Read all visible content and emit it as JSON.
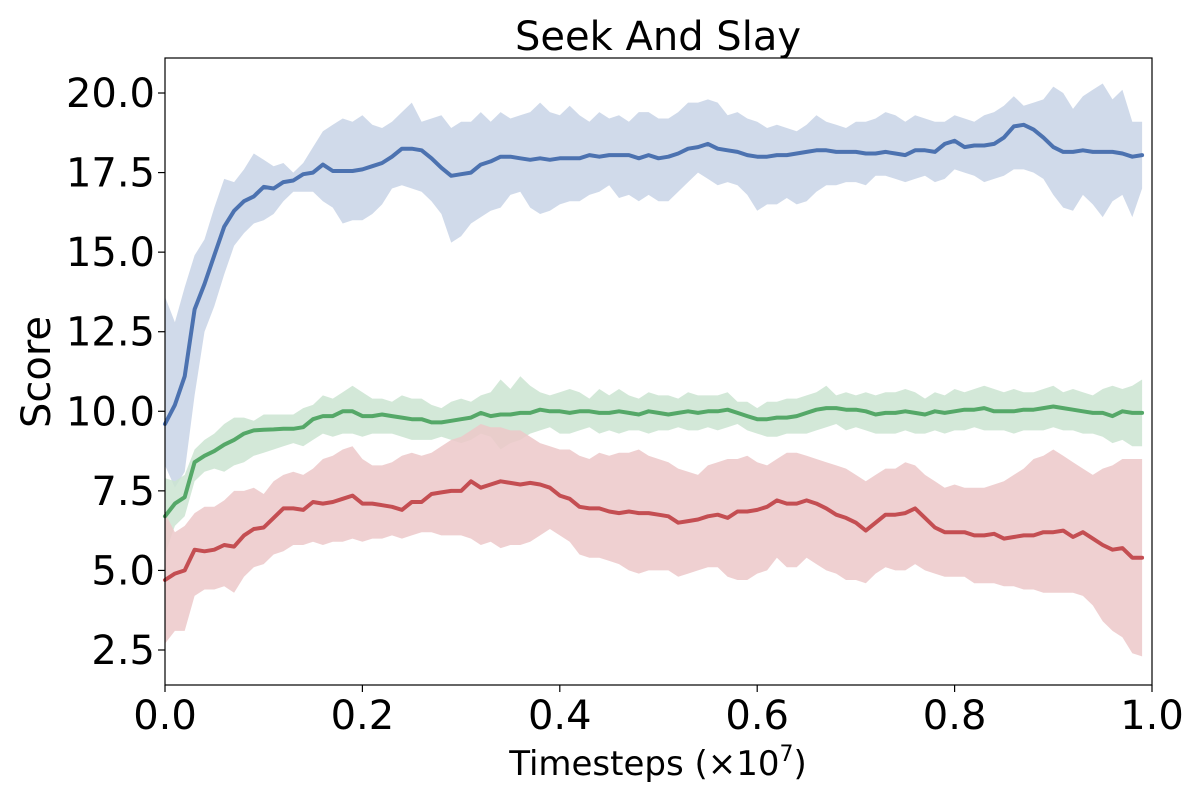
{
  "chart_data": {
    "type": "line",
    "title": "Seek And Slay",
    "xlabel": "Timesteps (×10",
    "xlabel_exponent": "7",
    "xlabel_suffix": ")",
    "ylabel": "Score",
    "xlim": [
      0.0,
      1.0
    ],
    "ylim": [
      1.4,
      21.1
    ],
    "xticks": [
      "0.0",
      "0.2",
      "0.4",
      "0.6",
      "0.8",
      "1.0"
    ],
    "yticks": [
      "2.5",
      "5.0",
      "7.5",
      "10.0",
      "12.5",
      "15.0",
      "17.5",
      "20.0"
    ],
    "grid": false,
    "series": [
      {
        "color": "#4c72b0",
        "fill_color": "#c8d3e6",
        "x": [
          0.0,
          0.01,
          0.02,
          0.03,
          0.04,
          0.05,
          0.06,
          0.07,
          0.08,
          0.09,
          0.1,
          0.11,
          0.12,
          0.13,
          0.14,
          0.15,
          0.16,
          0.17,
          0.18,
          0.19,
          0.2,
          0.21,
          0.22,
          0.23,
          0.24,
          0.25,
          0.26,
          0.27,
          0.28,
          0.29,
          0.3,
          0.31,
          0.32,
          0.33,
          0.34,
          0.35,
          0.36,
          0.37,
          0.38,
          0.39,
          0.4,
          0.41,
          0.42,
          0.43,
          0.44,
          0.45,
          0.46,
          0.47,
          0.48,
          0.49,
          0.5,
          0.51,
          0.52,
          0.53,
          0.54,
          0.55,
          0.56,
          0.57,
          0.58,
          0.59,
          0.6,
          0.61,
          0.62,
          0.63,
          0.64,
          0.65,
          0.66,
          0.67,
          0.68,
          0.69,
          0.7,
          0.71,
          0.72,
          0.73,
          0.74,
          0.75,
          0.76,
          0.77,
          0.78,
          0.79,
          0.8,
          0.81,
          0.82,
          0.83,
          0.84,
          0.85,
          0.86,
          0.87,
          0.88,
          0.89,
          0.9,
          0.91,
          0.92,
          0.93,
          0.94,
          0.95,
          0.96,
          0.97,
          0.98,
          0.99
        ],
        "mean": [
          9.6,
          10.2,
          11.1,
          13.2,
          14.0,
          14.9,
          15.8,
          16.3,
          16.6,
          16.75,
          17.05,
          17.0,
          17.2,
          17.25,
          17.45,
          17.5,
          17.75,
          17.55,
          17.55,
          17.55,
          17.6,
          17.7,
          17.8,
          18.0,
          18.25,
          18.25,
          18.2,
          17.95,
          17.65,
          17.4,
          17.45,
          17.5,
          17.75,
          17.85,
          18.0,
          18.0,
          17.95,
          17.9,
          17.95,
          17.9,
          17.95,
          17.95,
          17.95,
          18.05,
          18.0,
          18.05,
          18.05,
          18.05,
          17.95,
          18.05,
          17.95,
          18.0,
          18.1,
          18.25,
          18.3,
          18.4,
          18.25,
          18.2,
          18.15,
          18.05,
          18.0,
          18.0,
          18.05,
          18.05,
          18.1,
          18.15,
          18.2,
          18.2,
          18.15,
          18.15,
          18.15,
          18.1,
          18.1,
          18.15,
          18.1,
          18.05,
          18.2,
          18.2,
          18.15,
          18.4,
          18.5,
          18.3,
          18.35,
          18.35,
          18.4,
          18.6,
          18.95,
          19.0,
          18.85,
          18.6,
          18.3,
          18.15,
          18.15,
          18.2,
          18.15,
          18.15,
          18.15,
          18.1,
          18.0,
          18.05
        ],
        "upper": [
          13.6,
          12.8,
          13.9,
          14.9,
          15.4,
          16.4,
          17.3,
          17.2,
          17.6,
          18.1,
          17.9,
          17.7,
          17.8,
          17.5,
          17.8,
          18.3,
          18.8,
          19.0,
          19.2,
          19.1,
          19.3,
          19.0,
          18.9,
          19.1,
          19.4,
          19.7,
          19.1,
          19.2,
          19.3,
          18.9,
          19.1,
          19.1,
          19.4,
          19.1,
          19.4,
          19.2,
          19.3,
          19.4,
          19.7,
          19.4,
          19.3,
          19.6,
          19.3,
          19.1,
          19.4,
          19.2,
          19.3,
          19.1,
          19.4,
          19.4,
          19.2,
          19.2,
          19.4,
          19.7,
          19.7,
          19.8,
          19.7,
          19.3,
          19.4,
          19.2,
          19.1,
          18.9,
          19.0,
          18.9,
          18.8,
          19.0,
          19.3,
          19.1,
          19.0,
          18.9,
          19.1,
          19.1,
          19.2,
          19.4,
          19.3,
          19.1,
          19.3,
          19.2,
          19.1,
          19.1,
          19.3,
          19.2,
          19.1,
          19.3,
          19.4,
          19.6,
          19.9,
          19.6,
          19.7,
          19.8,
          20.2,
          20.0,
          19.5,
          19.9,
          20.1,
          20.3,
          19.8,
          20.1,
          19.1,
          19.1
        ],
        "lower": [
          8.3,
          7.6,
          8.1,
          10.5,
          12.5,
          13.3,
          14.3,
          15.2,
          15.6,
          15.9,
          16.0,
          16.2,
          16.6,
          16.9,
          16.9,
          16.9,
          16.6,
          16.4,
          15.9,
          16.0,
          16.0,
          16.2,
          16.5,
          17.0,
          17.1,
          17.0,
          16.9,
          16.6,
          16.2,
          15.3,
          15.5,
          15.9,
          16.1,
          16.3,
          16.4,
          16.8,
          16.9,
          16.4,
          16.2,
          16.3,
          16.5,
          16.6,
          16.6,
          16.8,
          16.9,
          17.1,
          16.7,
          16.8,
          16.6,
          16.8,
          16.6,
          16.6,
          16.9,
          17.2,
          17.5,
          17.3,
          17.1,
          17.2,
          17.1,
          16.8,
          16.3,
          16.5,
          16.5,
          16.7,
          16.5,
          16.6,
          16.9,
          17.1,
          17.1,
          17.2,
          17.2,
          17.1,
          17.4,
          17.4,
          17.3,
          17.2,
          17.3,
          17.4,
          17.2,
          17.3,
          17.6,
          17.5,
          17.4,
          17.2,
          17.3,
          17.4,
          17.6,
          17.6,
          17.5,
          17.3,
          16.8,
          16.4,
          16.3,
          16.8,
          16.5,
          16.1,
          16.6,
          16.8,
          16.1,
          17.0
        ]
      },
      {
        "color": "#55a868",
        "fill_color": "#cbe4d1",
        "x": [
          0.0,
          0.01,
          0.02,
          0.03,
          0.04,
          0.05,
          0.06,
          0.07,
          0.08,
          0.09,
          0.1,
          0.11,
          0.12,
          0.13,
          0.14,
          0.15,
          0.16,
          0.17,
          0.18,
          0.19,
          0.2,
          0.21,
          0.22,
          0.23,
          0.24,
          0.25,
          0.26,
          0.27,
          0.28,
          0.29,
          0.3,
          0.31,
          0.32,
          0.33,
          0.34,
          0.35,
          0.36,
          0.37,
          0.38,
          0.39,
          0.4,
          0.41,
          0.42,
          0.43,
          0.44,
          0.45,
          0.46,
          0.47,
          0.48,
          0.49,
          0.5,
          0.51,
          0.52,
          0.53,
          0.54,
          0.55,
          0.56,
          0.57,
          0.58,
          0.59,
          0.6,
          0.61,
          0.62,
          0.63,
          0.64,
          0.65,
          0.66,
          0.67,
          0.68,
          0.69,
          0.7,
          0.71,
          0.72,
          0.73,
          0.74,
          0.75,
          0.76,
          0.77,
          0.78,
          0.79,
          0.8,
          0.81,
          0.82,
          0.83,
          0.84,
          0.85,
          0.86,
          0.87,
          0.88,
          0.89,
          0.9,
          0.91,
          0.92,
          0.93,
          0.94,
          0.95,
          0.96,
          0.97,
          0.98,
          0.99
        ],
        "mean": [
          6.7,
          7.1,
          7.3,
          8.4,
          8.6,
          8.75,
          8.95,
          9.1,
          9.3,
          9.4,
          9.42,
          9.43,
          9.45,
          9.45,
          9.5,
          9.75,
          9.85,
          9.85,
          10.0,
          10.0,
          9.85,
          9.85,
          9.9,
          9.85,
          9.8,
          9.75,
          9.75,
          9.65,
          9.65,
          9.7,
          9.75,
          9.8,
          9.95,
          9.85,
          9.9,
          9.9,
          9.95,
          9.95,
          10.05,
          10.0,
          10.0,
          9.95,
          10.0,
          10.0,
          9.95,
          9.95,
          10.0,
          9.95,
          9.9,
          10.0,
          9.95,
          9.9,
          9.95,
          10.0,
          9.95,
          10.0,
          10.0,
          10.05,
          9.95,
          9.85,
          9.75,
          9.75,
          9.8,
          9.8,
          9.85,
          9.95,
          10.05,
          10.1,
          10.1,
          10.05,
          10.05,
          10.0,
          9.9,
          9.95,
          9.95,
          10.0,
          9.95,
          9.9,
          10.0,
          9.95,
          10.0,
          10.05,
          10.05,
          10.1,
          10.0,
          10.0,
          10.0,
          10.05,
          10.05,
          10.1,
          10.15,
          10.1,
          10.05,
          10.0,
          9.95,
          9.95,
          9.85,
          10.0,
          9.95,
          9.95
        ],
        "upper": [
          7.9,
          7.8,
          8.0,
          8.8,
          9.1,
          9.3,
          9.6,
          9.8,
          9.8,
          9.7,
          9.9,
          9.9,
          9.9,
          9.9,
          10.1,
          10.2,
          10.5,
          10.4,
          10.6,
          10.8,
          10.6,
          10.4,
          10.4,
          10.3,
          10.5,
          10.4,
          10.4,
          10.2,
          10.1,
          10.3,
          10.4,
          10.3,
          10.5,
          10.6,
          11.0,
          10.7,
          11.1,
          10.8,
          10.6,
          10.5,
          10.6,
          10.7,
          10.6,
          10.4,
          10.7,
          10.5,
          10.7,
          10.5,
          10.4,
          10.6,
          10.5,
          10.5,
          10.4,
          10.6,
          10.5,
          10.5,
          10.5,
          10.6,
          10.3,
          10.3,
          10.1,
          10.3,
          10.3,
          10.4,
          10.4,
          10.5,
          10.6,
          10.8,
          10.5,
          10.6,
          10.5,
          10.6,
          10.5,
          10.6,
          10.6,
          10.7,
          10.6,
          10.4,
          10.6,
          10.5,
          10.7,
          10.6,
          10.7,
          10.8,
          10.7,
          10.6,
          10.7,
          10.6,
          10.6,
          10.7,
          10.8,
          10.6,
          10.7,
          10.6,
          10.5,
          10.7,
          10.8,
          10.7,
          10.8,
          11.0
        ],
        "lower": [
          5.5,
          6.4,
          6.7,
          7.8,
          8.1,
          8.2,
          8.1,
          8.3,
          8.4,
          8.6,
          8.7,
          8.8,
          8.9,
          9.0,
          8.9,
          9.1,
          9.3,
          9.2,
          9.3,
          9.3,
          9.2,
          9.3,
          9.3,
          9.3,
          9.2,
          9.1,
          9.1,
          9.1,
          9.2,
          9.1,
          9.0,
          9.1,
          9.3,
          9.2,
          8.8,
          9.0,
          9.1,
          9.3,
          9.4,
          9.5,
          9.3,
          9.3,
          9.4,
          9.5,
          9.3,
          9.4,
          9.3,
          9.4,
          9.4,
          9.3,
          9.4,
          9.4,
          9.5,
          9.4,
          9.4,
          9.5,
          9.4,
          9.5,
          9.6,
          9.4,
          9.3,
          9.2,
          9.2,
          9.3,
          9.3,
          9.3,
          9.4,
          9.5,
          9.6,
          9.4,
          9.5,
          9.4,
          9.3,
          9.3,
          9.3,
          9.4,
          9.3,
          9.3,
          9.4,
          9.3,
          9.4,
          9.4,
          9.5,
          9.4,
          9.4,
          9.4,
          9.3,
          9.4,
          9.4,
          9.4,
          9.5,
          9.4,
          9.4,
          9.3,
          9.3,
          9.2,
          9.0,
          9.1,
          8.9,
          8.9
        ]
      },
      {
        "color": "#c44e52",
        "fill_color": "#ecc8c9",
        "x": [
          0.0,
          0.01,
          0.02,
          0.03,
          0.04,
          0.05,
          0.06,
          0.07,
          0.08,
          0.09,
          0.1,
          0.11,
          0.12,
          0.13,
          0.14,
          0.15,
          0.16,
          0.17,
          0.18,
          0.19,
          0.2,
          0.21,
          0.22,
          0.23,
          0.24,
          0.25,
          0.26,
          0.27,
          0.28,
          0.29,
          0.3,
          0.31,
          0.32,
          0.33,
          0.34,
          0.35,
          0.36,
          0.37,
          0.38,
          0.39,
          0.4,
          0.41,
          0.42,
          0.43,
          0.44,
          0.45,
          0.46,
          0.47,
          0.48,
          0.49,
          0.5,
          0.51,
          0.52,
          0.53,
          0.54,
          0.55,
          0.56,
          0.57,
          0.58,
          0.59,
          0.6,
          0.61,
          0.62,
          0.63,
          0.64,
          0.65,
          0.66,
          0.67,
          0.68,
          0.69,
          0.7,
          0.71,
          0.72,
          0.73,
          0.74,
          0.75,
          0.76,
          0.77,
          0.78,
          0.79,
          0.8,
          0.81,
          0.82,
          0.83,
          0.84,
          0.85,
          0.86,
          0.87,
          0.88,
          0.89,
          0.9,
          0.91,
          0.92,
          0.93,
          0.94,
          0.95,
          0.96,
          0.97,
          0.98,
          0.99
        ],
        "mean": [
          4.7,
          4.9,
          5.0,
          5.65,
          5.6,
          5.65,
          5.8,
          5.75,
          6.1,
          6.3,
          6.35,
          6.65,
          6.95,
          6.95,
          6.9,
          7.15,
          7.1,
          7.15,
          7.25,
          7.35,
          7.1,
          7.1,
          7.05,
          7.0,
          6.9,
          7.15,
          7.15,
          7.4,
          7.45,
          7.5,
          7.5,
          7.8,
          7.6,
          7.7,
          7.8,
          7.75,
          7.7,
          7.75,
          7.7,
          7.6,
          7.35,
          7.25,
          7.0,
          6.95,
          6.95,
          6.85,
          6.8,
          6.85,
          6.8,
          6.8,
          6.75,
          6.7,
          6.5,
          6.55,
          6.6,
          6.7,
          6.75,
          6.65,
          6.85,
          6.85,
          6.9,
          7.0,
          7.2,
          7.1,
          7.1,
          7.2,
          7.1,
          6.95,
          6.75,
          6.65,
          6.5,
          6.25,
          6.5,
          6.75,
          6.75,
          6.8,
          6.95,
          6.65,
          6.35,
          6.2,
          6.2,
          6.2,
          6.1,
          6.1,
          6.15,
          6.0,
          6.05,
          6.1,
          6.1,
          6.2,
          6.2,
          6.25,
          6.05,
          6.2,
          6.0,
          5.8,
          5.65,
          5.7,
          5.4,
          5.4
        ],
        "upper": [
          6.8,
          6.2,
          6.4,
          6.8,
          7.0,
          7.0,
          7.2,
          7.5,
          7.5,
          7.6,
          7.4,
          7.8,
          8.0,
          8.1,
          8.0,
          8.2,
          8.5,
          8.6,
          8.8,
          8.9,
          8.5,
          8.3,
          8.3,
          8.4,
          8.6,
          8.7,
          8.6,
          8.7,
          8.9,
          9.1,
          9.2,
          9.4,
          9.6,
          9.5,
          9.5,
          9.4,
          9.4,
          9.2,
          9.0,
          8.9,
          8.8,
          8.8,
          8.6,
          8.5,
          8.7,
          8.6,
          8.7,
          8.7,
          8.8,
          8.6,
          8.5,
          8.4,
          8.2,
          8.1,
          8.0,
          8.3,
          8.4,
          8.5,
          8.5,
          8.6,
          8.4,
          8.3,
          8.5,
          8.7,
          8.7,
          8.6,
          8.5,
          8.4,
          8.3,
          8.2,
          8.0,
          7.8,
          8.0,
          8.2,
          8.2,
          8.4,
          8.3,
          8.0,
          7.8,
          7.6,
          7.7,
          7.6,
          7.6,
          7.6,
          7.7,
          7.8,
          8.0,
          8.2,
          8.5,
          8.6,
          8.8,
          8.6,
          8.4,
          8.2,
          8.0,
          8.2,
          8.3,
          8.5,
          8.5,
          8.5
        ],
        "lower": [
          2.7,
          3.1,
          3.1,
          4.2,
          4.4,
          4.4,
          4.5,
          4.3,
          4.8,
          5.1,
          5.2,
          5.5,
          5.6,
          5.8,
          5.8,
          5.9,
          5.8,
          5.9,
          5.9,
          6.0,
          5.9,
          6.0,
          6.0,
          6.1,
          6.0,
          6.1,
          6.2,
          6.2,
          6.1,
          6.1,
          6.1,
          6.0,
          5.8,
          5.9,
          5.7,
          5.8,
          5.8,
          5.9,
          6.1,
          6.3,
          6.1,
          5.9,
          5.5,
          5.4,
          5.4,
          5.3,
          5.2,
          5.0,
          4.9,
          5.0,
          5.0,
          5.0,
          4.8,
          4.9,
          5.0,
          5.1,
          5.1,
          4.8,
          4.7,
          4.7,
          4.9,
          5.0,
          5.4,
          5.1,
          5.1,
          5.4,
          5.2,
          5.0,
          4.9,
          4.7,
          4.7,
          4.6,
          4.9,
          5.1,
          5.0,
          5.0,
          5.2,
          5.0,
          4.9,
          4.8,
          4.8,
          4.8,
          4.6,
          4.6,
          4.6,
          4.5,
          4.5,
          4.4,
          4.4,
          4.3,
          4.3,
          4.3,
          4.3,
          4.2,
          3.9,
          3.4,
          3.1,
          2.9,
          2.4,
          2.3
        ]
      }
    ]
  }
}
